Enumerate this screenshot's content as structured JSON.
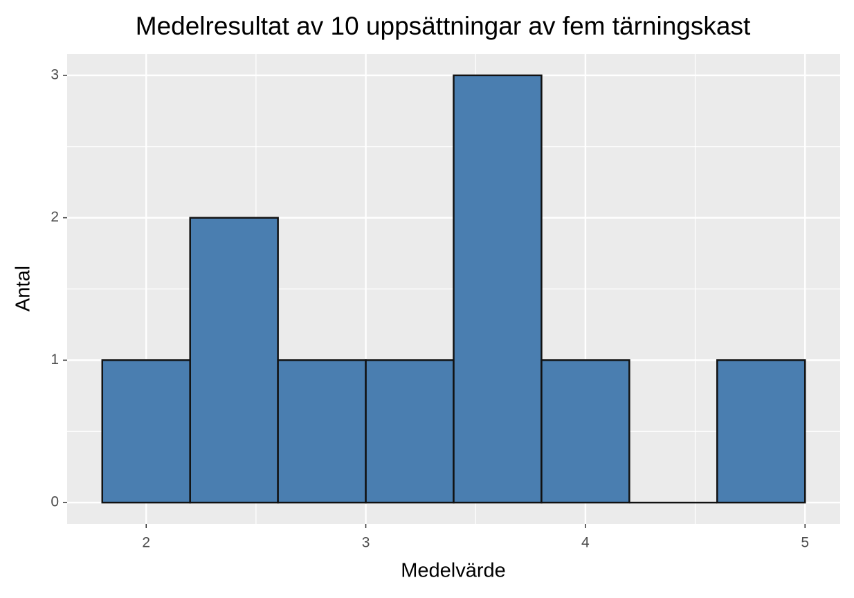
{
  "chart_data": {
    "type": "histogram",
    "title": "Medelresultat av 10 uppsättningar av fem tärningskast",
    "x_label": "Medelvärde",
    "y_label": "Antal",
    "bins": [
      1.8,
      2.2,
      2.6,
      3.0,
      3.4,
      3.8,
      4.2,
      4.6,
      5.0
    ],
    "values": [
      1,
      2,
      1,
      1,
      3,
      1,
      0,
      1
    ],
    "color": "#4a7eb0",
    "edge_color": "#111111",
    "xlim": [
      1.64,
      5.16
    ],
    "ylim": [
      -0.15,
      3.15
    ],
    "xticks": [
      2,
      3,
      4,
      5
    ],
    "yticks": [
      0,
      1,
      2,
      3
    ],
    "x_minor_ticks": [
      2.5,
      3.5,
      4.5
    ],
    "y_minor_ticks": [
      0.5,
      1.5,
      2.5
    ],
    "grid": true
  }
}
